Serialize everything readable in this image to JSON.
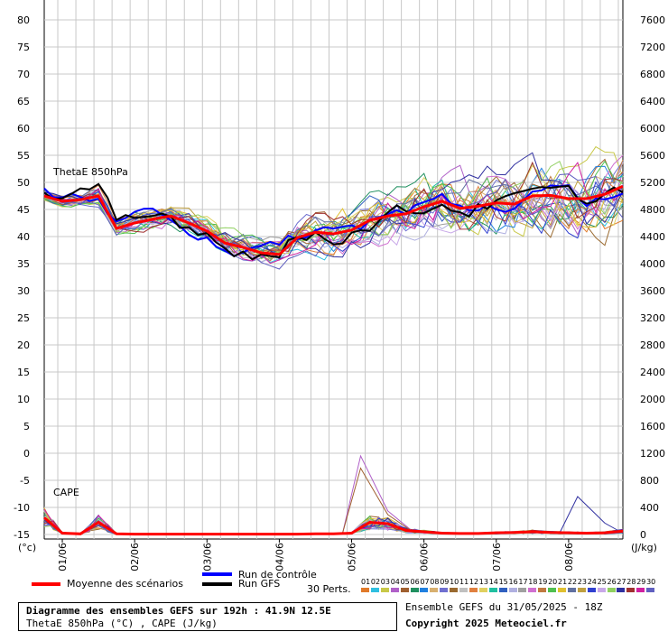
{
  "chart_data": {
    "type": "line",
    "title": "Diagramme des ensembles GEFS sur 192h : 41.9N 12.5E",
    "subtitle": "ThetaE 850hPa (°C) , CAPE (J/kg)",
    "left_axis": {
      "unit_label": "(°c)",
      "ticks": [
        "80",
        "75",
        "70",
        "65",
        "60",
        "55",
        "50",
        "45",
        "40",
        "35",
        "30",
        "25",
        "20",
        "15",
        "10",
        "5",
        "0",
        "-5",
        "-10",
        "-15"
      ],
      "ylim": [
        -15,
        80
      ]
    },
    "right_axis": {
      "unit_label": "(J/kg)",
      "ticks": [
        "7600",
        "7200",
        "6800",
        "6400",
        "6000",
        "5600",
        "5200",
        "4800",
        "4400",
        "4000",
        "3600",
        "3200",
        "2800",
        "2400",
        "2000",
        "1600",
        "1200",
        "800",
        "400",
        "0"
      ],
      "ylim": [
        0,
        7600
      ]
    },
    "x_tick_labels": [
      "01/06",
      "02/06",
      "03/06",
      "04/06",
      "05/06",
      "06/06",
      "07/06",
      "08/06"
    ],
    "panel_labels": {
      "thetae": "ThetaE 850hPa",
      "cape": "CAPE"
    },
    "thetae_mean": {
      "name": "Moyenne des scénarios",
      "x": [
        0,
        6,
        12,
        18,
        24,
        30,
        36,
        42,
        48,
        54,
        60,
        66,
        72,
        78,
        84,
        90,
        96,
        102,
        108,
        114,
        120,
        126,
        132,
        138,
        144,
        150,
        156,
        162,
        168,
        174,
        180,
        186,
        192
      ],
      "y": [
        47.5,
        46.5,
        46.8,
        47.5,
        41.5,
        42.5,
        43.2,
        43.8,
        42.5,
        41.0,
        38.8,
        38.0,
        37.0,
        36.7,
        39.8,
        40.8,
        40.5,
        41.2,
        43.0,
        43.8,
        44.2,
        45.5,
        46.5,
        45.2,
        45.6,
        46.2,
        46.0,
        47.5,
        47.6,
        47.0,
        47.0,
        47.8,
        49.3
      ]
    },
    "thetae_spread_deg": [
      0.8,
      0.8,
      1.0,
      1.5,
      1.2,
      1.5,
      1.5,
      1.8,
      2.0,
      2.2,
      2.5,
      2.5,
      2.2,
      2.2,
      2.5,
      3.2,
      3.5,
      3.8,
      4.0,
      4.2,
      4.5,
      4.5,
      4.8,
      5.0,
      5.0,
      5.2,
      5.2,
      5.5,
      5.5,
      5.5,
      5.8,
      6.0,
      6.0
    ],
    "cape_mean": {
      "name": "Moyenne des scénarios",
      "x": [
        0,
        6,
        12,
        18,
        24,
        30,
        36,
        42,
        48,
        54,
        60,
        66,
        72,
        78,
        84,
        90,
        96,
        102,
        108,
        114,
        120,
        126,
        132,
        138,
        144,
        150,
        156,
        162,
        168,
        174,
        180,
        186,
        192
      ],
      "y": [
        250,
        20,
        10,
        180,
        10,
        5,
        5,
        5,
        5,
        5,
        5,
        5,
        5,
        5,
        5,
        10,
        10,
        20,
        180,
        160,
        60,
        40,
        20,
        15,
        15,
        25,
        30,
        40,
        30,
        25,
        20,
        25,
        50
      ]
    },
    "cape_peaks_jkg": [
      {
        "member": "04",
        "x": "05/06",
        "value": 1160
      },
      {
        "member": "05",
        "x": "05/06",
        "value": 980
      },
      {
        "member": "27",
        "x": "08/06",
        "value": 560
      }
    ],
    "colors": {
      "mean": "#ff0000",
      "control": "#0000ff",
      "gfs": "#000000",
      "grid": "#c8c8c8"
    },
    "legend": {
      "mean_label": "Moyenne des scénarios",
      "control_label": "Run de contrôle",
      "gfs_label": "Run GFS",
      "perts_label": "30 Perts."
    },
    "members": {
      "labels": [
        "01",
        "02",
        "03",
        "04",
        "05",
        "06",
        "07",
        "08",
        "09",
        "10",
        "11",
        "12",
        "13",
        "14",
        "15",
        "16",
        "17",
        "18",
        "19",
        "20",
        "21",
        "22",
        "23",
        "24",
        "25",
        "26",
        "27",
        "28",
        "29",
        "30"
      ],
      "colors": [
        "#e07a2a",
        "#2fbfe0",
        "#c8c848",
        "#b060c8",
        "#a06030",
        "#209060",
        "#2080e0",
        "#d8b070",
        "#7070d0",
        "#9a6a30",
        "#c0c0c0",
        "#e08040",
        "#e0d060",
        "#20c0a0",
        "#3060c0",
        "#b0b0e0",
        "#a0a0a0",
        "#d070d0",
        "#c07a40",
        "#50c050",
        "#e0c030",
        "#6070a0",
        "#c0a040",
        "#3040d0",
        "#c8a8e8",
        "#90d060",
        "#3030a0",
        "#a03030",
        "#d020a0",
        "#6060c0"
      ]
    },
    "info": {
      "run": "Ensemble GEFS du 31/05/2025 - 18Z",
      "copyright": "Copyright 2025 Meteociel.fr"
    }
  }
}
